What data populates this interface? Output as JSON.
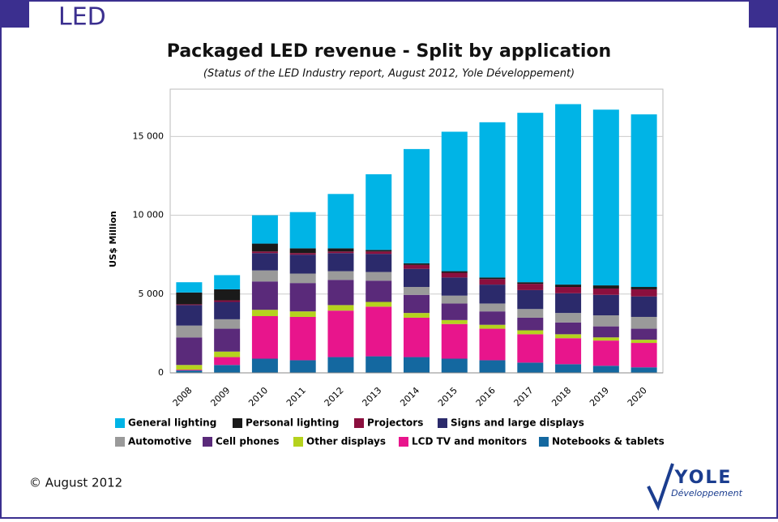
{
  "header": {
    "title": "LED",
    "footer": "© August 2012",
    "logo": "YOLE",
    "logo_sub": "Développement"
  },
  "chart_data": {
    "type": "stacked_bar",
    "title": "Packaged LED revenue - Split by application",
    "subtitle": "(Status of the LED Industry report, August 2012, Yole Développement)",
    "y_label": "US$ Million",
    "categories": [
      "2008",
      "2009",
      "2010",
      "2011",
      "2012",
      "2013",
      "2014",
      "2015",
      "2016",
      "2017",
      "2018",
      "2019",
      "2020"
    ],
    "series": [
      {
        "name": "General lighting",
        "color": "#00b4e6",
        "values": [
          650,
          900,
          1800,
          2300,
          3450,
          4800,
          7250,
          8850,
          9850,
          10750,
          11450,
          11150,
          10950
        ]
      },
      {
        "name": "Personal lighting",
        "color": "#1a1a1a",
        "values": [
          750,
          700,
          500,
          300,
          200,
          100,
          100,
          100,
          100,
          100,
          150,
          200,
          150
        ]
      },
      {
        "name": "Projectors",
        "color": "#8b0f3e",
        "values": [
          50,
          100,
          100,
          100,
          100,
          150,
          250,
          300,
          350,
          400,
          400,
          400,
          450
        ]
      },
      {
        "name": "Signs and large displays",
        "color": "#2b2a6b",
        "values": [
          1300,
          1100,
          1100,
          1200,
          1150,
          1150,
          1150,
          1150,
          1200,
          1200,
          1250,
          1300,
          1300
        ]
      },
      {
        "name": "Automotive",
        "color": "#9a9a9a",
        "values": [
          750,
          600,
          700,
          600,
          550,
          550,
          500,
          500,
          500,
          550,
          600,
          700,
          750
        ]
      },
      {
        "name": "Cell phones",
        "color": "#5a2a7a",
        "values": [
          1750,
          1450,
          1800,
          1800,
          1600,
          1350,
          1150,
          1050,
          850,
          800,
          750,
          700,
          700
        ]
      },
      {
        "name": "Other displays",
        "color": "#b5d21e",
        "values": [
          300,
          350,
          400,
          350,
          350,
          300,
          300,
          250,
          250,
          250,
          250,
          200,
          200
        ]
      },
      {
        "name": "LCD TV and monitors",
        "color": "#e8158c",
        "values": [
          50,
          500,
          2700,
          2750,
          2950,
          3150,
          2500,
          2200,
          2000,
          1800,
          1650,
          1600,
          1550
        ]
      },
      {
        "name": "Notebooks & tablets",
        "color": "#1468a0",
        "values": [
          150,
          500,
          900,
          800,
          1000,
          1050,
          1000,
          900,
          800,
          650,
          550,
          450,
          350
        ]
      }
    ],
    "ylim": [
      0,
      18000
    ],
    "yticks": [
      0,
      {
        "value": 5000,
        "label": "5 000"
      },
      {
        "value": 10000,
        "label": "10 000"
      },
      {
        "value": 15000,
        "label": "15 000"
      }
    ],
    "grid": true
  }
}
